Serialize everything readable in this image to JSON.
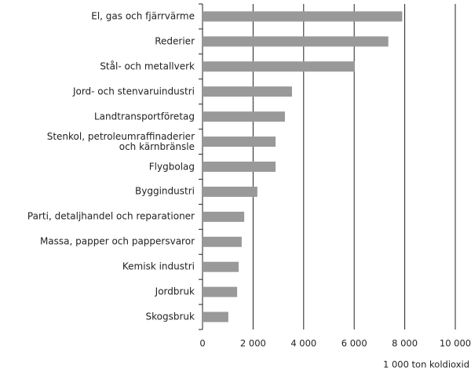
{
  "chart_data": {
    "type": "barh",
    "categories": [
      "El, gas och fjärrvärme",
      "Rederier",
      "Stål- och metallverk",
      "Jord- och stenvaruindustri",
      "Landtransportföretag",
      "Stenkol, petroleumraffinaderier\noch kärnbränsle",
      "Flygbolag",
      "Byggindustri",
      "Parti, detaljhandel och reparationer",
      "Massa, papper och pappersvaror",
      "Kemisk industri",
      "Jordbruk",
      "Skogsbruk"
    ],
    "values": [
      7900,
      7350,
      6020,
      3540,
      3260,
      2890,
      2890,
      2170,
      1650,
      1550,
      1430,
      1370,
      1020
    ],
    "color": "#999999",
    "xlim": [
      0,
      10000
    ],
    "xticks": [
      0,
      {
        "value": 2000,
        "label": "2 000"
      },
      {
        "value": 4000,
        "label": "4 000"
      },
      {
        "value": 6000,
        "label": "6 000"
      },
      {
        "value": 8000,
        "label": "8 000"
      },
      {
        "value": 10000,
        "label": "10 000"
      }
    ],
    "xlabel": "1 000 ton koldioxid",
    "grid": true
  }
}
